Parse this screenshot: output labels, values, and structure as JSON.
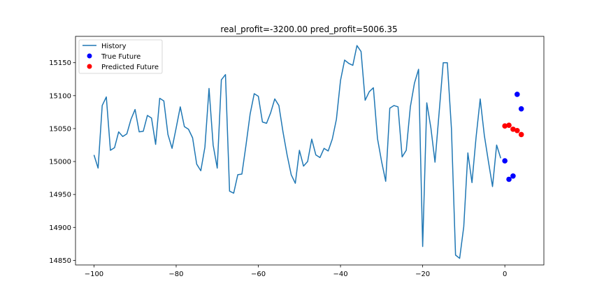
{
  "chart_data": {
    "type": "line",
    "title": "real_profit=-3200.00 pred_profit=5006.35",
    "xlabel": "",
    "ylabel": "",
    "xlim": [
      -104.5,
      9.5
    ],
    "ylim": [
      14843,
      15190
    ],
    "xticks": [
      -100,
      -80,
      -60,
      -40,
      -20,
      0
    ],
    "xtick_labels": [
      "−100",
      "−80",
      "−60",
      "−40",
      "−20",
      "0"
    ],
    "yticks": [
      14850,
      14900,
      14950,
      15000,
      15050,
      15100,
      15150
    ],
    "ytick_labels": [
      "14850",
      "14900",
      "14950",
      "15000",
      "15050",
      "15100",
      "15150"
    ],
    "grid": false,
    "legend_position": "upper-left",
    "series": [
      {
        "name": "History",
        "kind": "line",
        "color": "#1f77b4",
        "x": [
          -100,
          -99,
          -98,
          -97,
          -96,
          -95,
          -94,
          -93,
          -92,
          -91,
          -90,
          -89,
          -88,
          -87,
          -86,
          -85,
          -84,
          -83,
          -82,
          -81,
          -80,
          -79,
          -78,
          -77,
          -76,
          -75,
          -74,
          -73,
          -72,
          -71,
          -70,
          -69,
          -68,
          -67,
          -66,
          -65,
          -64,
          -63,
          -62,
          -61,
          -60,
          -59,
          -58,
          -57,
          -56,
          -55,
          -54,
          -53,
          -52,
          -51,
          -50,
          -49,
          -48,
          -47,
          -46,
          -45,
          -44,
          -43,
          -42,
          -41,
          -40,
          -39,
          -38,
          -37,
          -36,
          -35,
          -34,
          -33,
          -32,
          -31,
          -30,
          -29,
          -28,
          -27,
          -26,
          -25,
          -24,
          -23,
          -22,
          -21,
          -20,
          -19,
          -18,
          -17,
          -16,
          -15,
          -14,
          -13,
          -12,
          -11,
          -10,
          -9,
          -8,
          -7,
          -6,
          -5,
          -4,
          -3,
          -2,
          -1
        ],
        "y": [
          15010,
          14990,
          15085,
          15098,
          15017,
          15021,
          15045,
          15038,
          15042,
          15064,
          15079,
          15045,
          15046,
          15070,
          15066,
          15026,
          15096,
          15092,
          15041,
          15020,
          15051,
          15083,
          15053,
          15049,
          15036,
          14996,
          14986,
          15022,
          15111,
          15025,
          14990,
          15124,
          15132,
          14955,
          14952,
          14980,
          14981,
          15025,
          15072,
          15103,
          15099,
          15060,
          15058,
          15074,
          15095,
          15085,
          15045,
          15010,
          14980,
          14967,
          15017,
          14993,
          15000,
          15034,
          15010,
          15006,
          15020,
          15016,
          15034,
          15064,
          15123,
          15154,
          15149,
          15146,
          15176,
          15167,
          15093,
          15106,
          15112,
          15035,
          15000,
          14970,
          15081,
          15085,
          15083,
          15007,
          15017,
          15083,
          15119,
          15140,
          14871,
          15089,
          15051,
          14999,
          15074,
          15150,
          15150,
          15050,
          14858,
          14853,
          14901,
          15013,
          14968,
          15037,
          15095,
          15040,
          15000,
          14962,
          15025,
          15005
        ]
      },
      {
        "name": "True Future",
        "kind": "scatter",
        "color": "#0000ff",
        "x": [
          0,
          1,
          2,
          3,
          4
        ],
        "y": [
          15001,
          14973,
          14978,
          15102,
          15080
        ]
      },
      {
        "name": "Predicted Future",
        "kind": "scatter",
        "color": "#ff0000",
        "x": [
          0,
          1,
          2,
          3,
          4
        ],
        "y": [
          15054,
          15055,
          15049,
          15047,
          15041
        ]
      }
    ]
  }
}
